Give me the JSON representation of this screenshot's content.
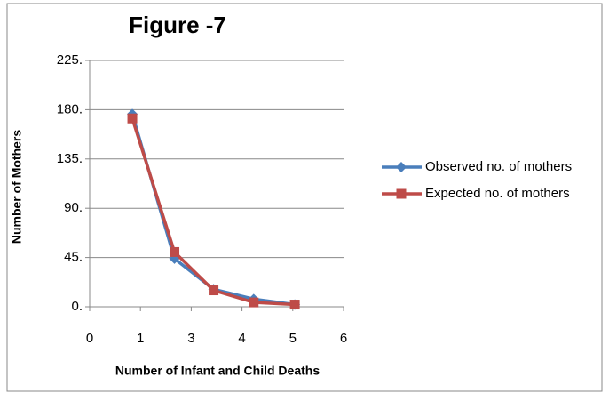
{
  "chart_data": {
    "type": "line",
    "title": "Figure -7",
    "x_label": "Number of Infant and Child Deaths",
    "y_label": "Number of  Mothers",
    "xlim": [
      0,
      5
    ],
    "ylim": [
      0,
      225
    ],
    "xticks": [
      {
        "value": 0,
        "label": "0"
      },
      {
        "value": 1,
        "label": "1"
      },
      {
        "value": 2,
        "label": "3"
      },
      {
        "value": 3,
        "label": "4"
      },
      {
        "value": 4,
        "label": "5"
      },
      {
        "value": 5,
        "label": "6"
      }
    ],
    "yticks": [
      {
        "value": 0,
        "label": "0."
      },
      {
        "value": 45,
        "label": "45."
      },
      {
        "value": 90,
        "label": "90."
      },
      {
        "value": 135,
        "label": "135."
      },
      {
        "value": 180,
        "label": "180."
      },
      {
        "value": 225,
        "label": "225."
      }
    ],
    "grid": true,
    "legend": "right",
    "x": [
      0.84,
      1.67,
      2.44,
      3.23,
      4.04
    ],
    "series": [
      {
        "name": "Observed no. of mothers",
        "color": "#4a7ebb",
        "marker": "diamond",
        "values": [
          176,
          44,
          16,
          7,
          2
        ]
      },
      {
        "name": "Expected no. of mothers",
        "color": "#be4b48",
        "marker": "square",
        "values": [
          172,
          50,
          15,
          4,
          2
        ]
      }
    ]
  }
}
